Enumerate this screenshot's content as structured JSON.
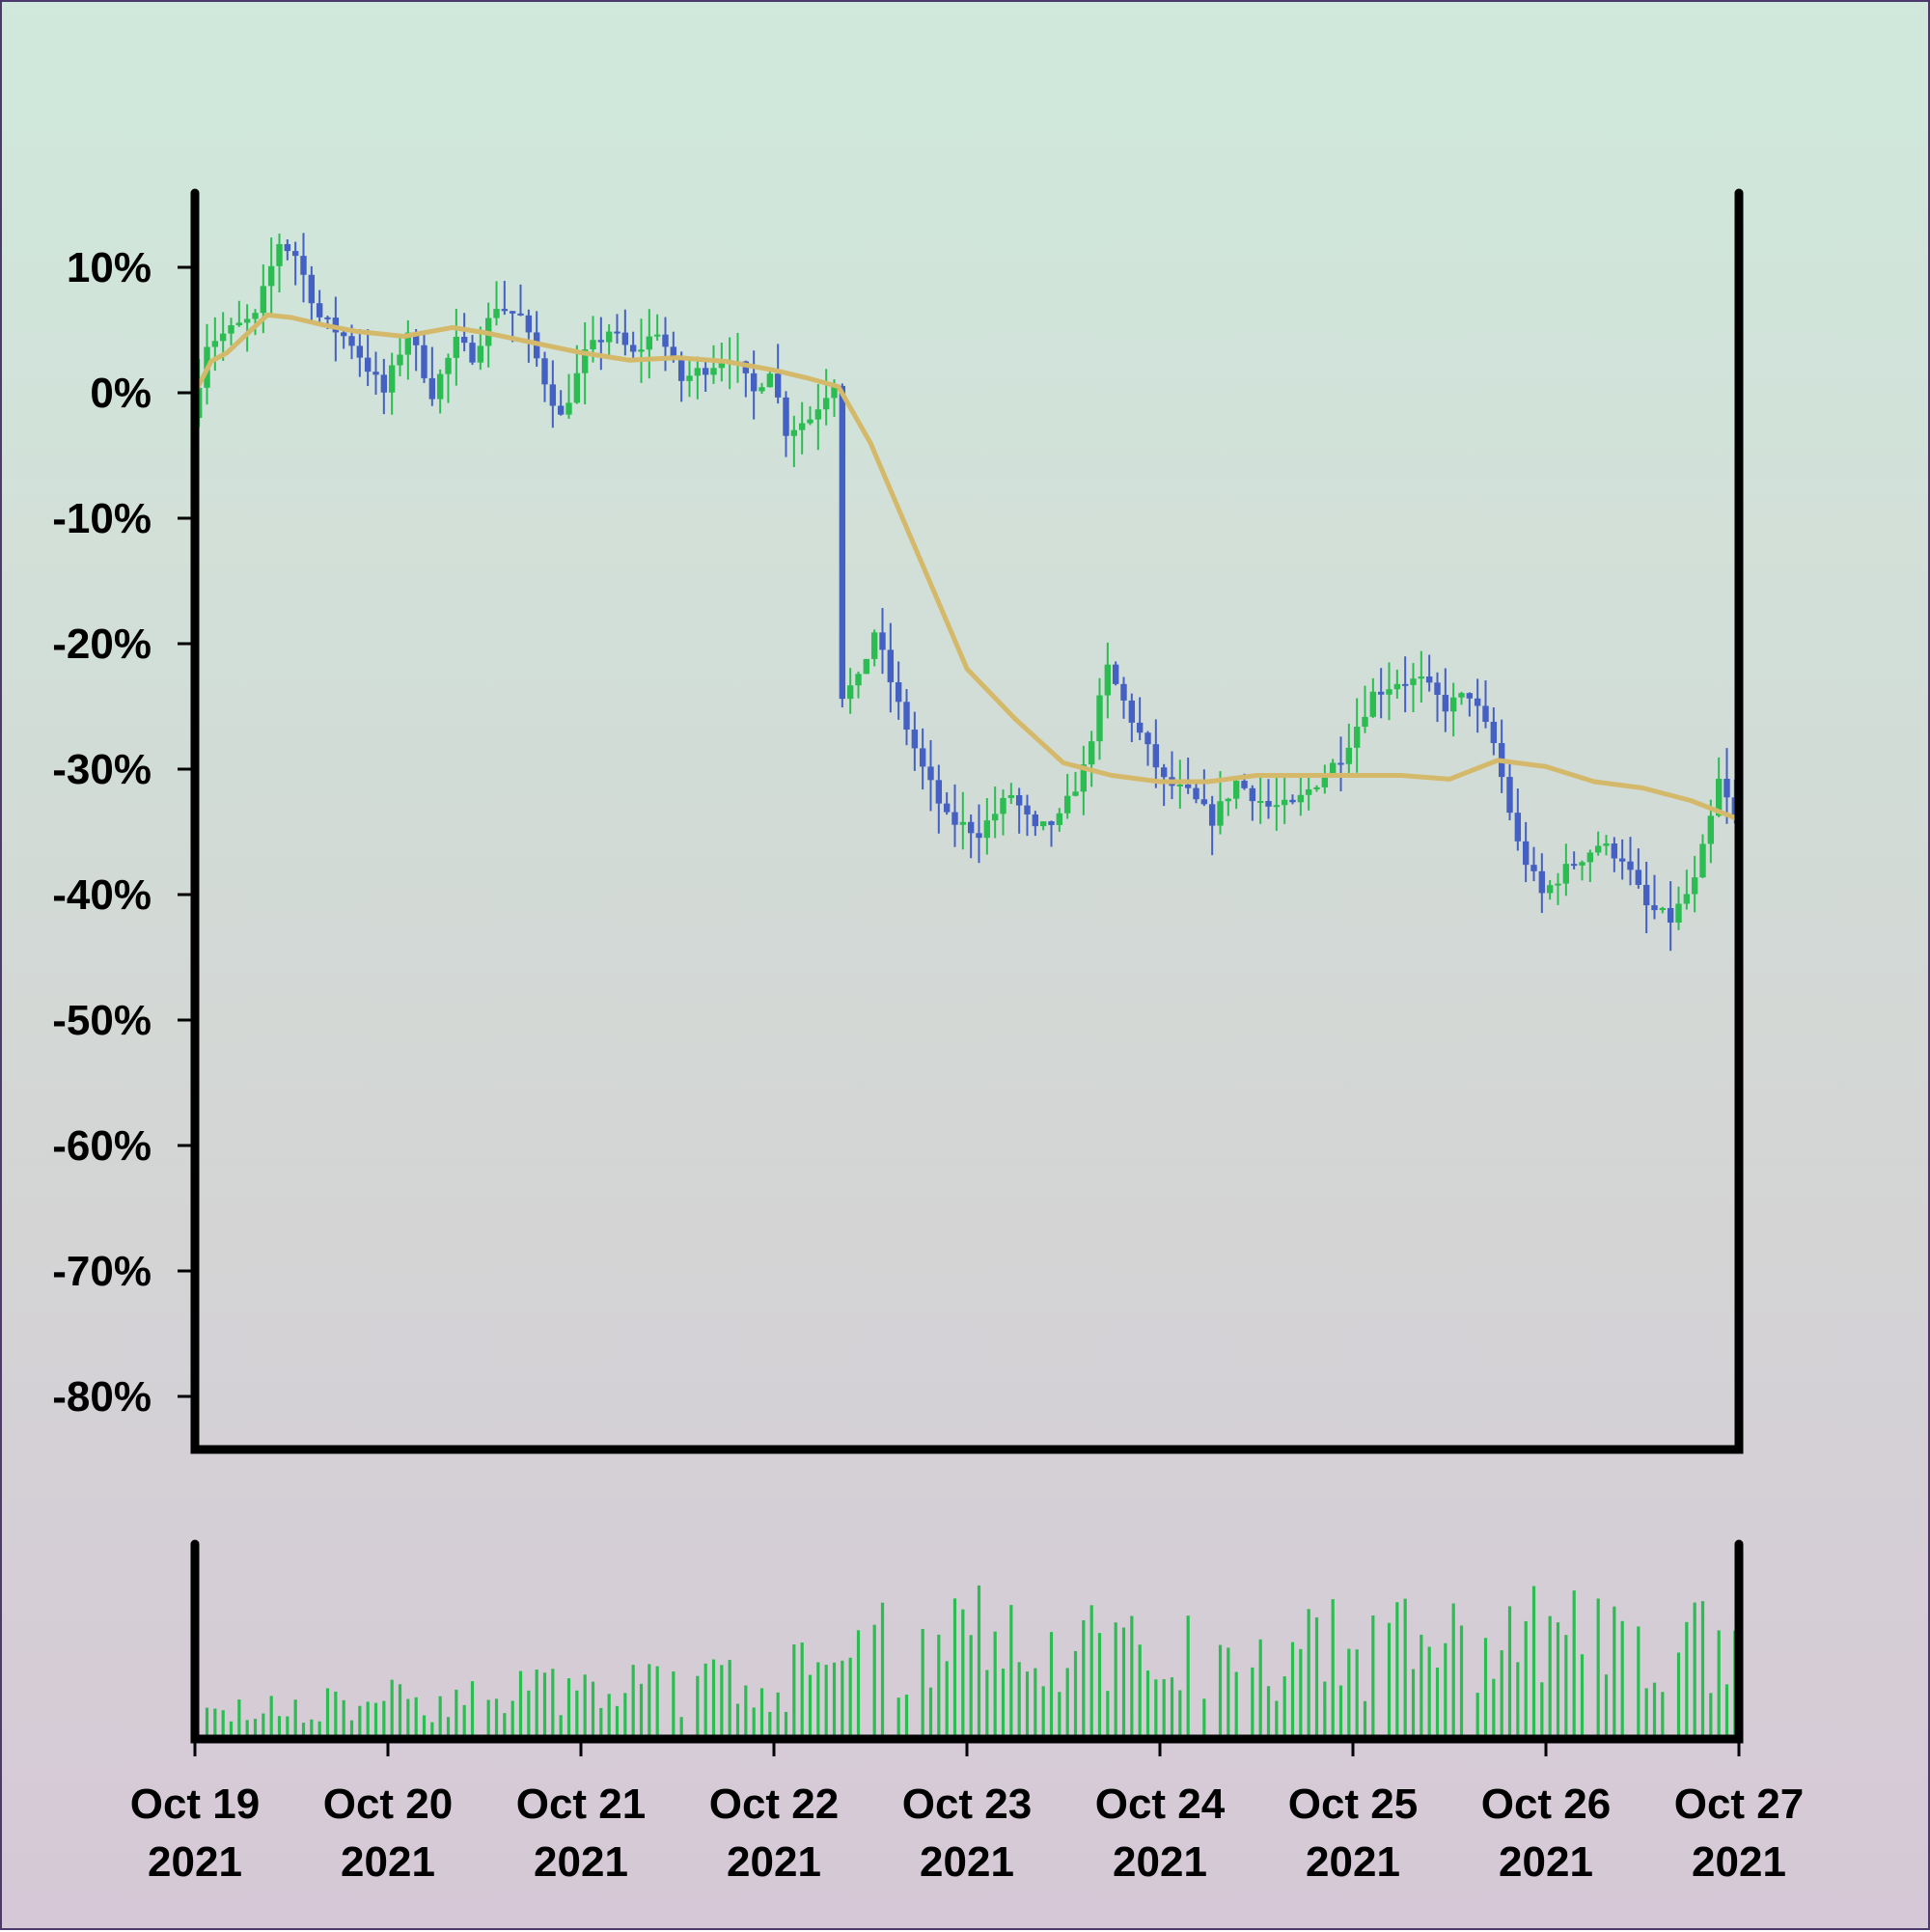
{
  "chart_data": {
    "type": "candlestick",
    "title": "",
    "xlabel": "",
    "ylabel": "",
    "y_unit": "%",
    "ylim": [
      -84,
      16
    ],
    "yticks": [
      10,
      0,
      -10,
      -20,
      -30,
      -40,
      -50,
      -60,
      -70,
      -80
    ],
    "ytick_labels": [
      "10%",
      "0%",
      "-10%",
      "-20%",
      "-30%",
      "-40%",
      "-50%",
      "-60%",
      "-70%",
      "-80%"
    ],
    "x_start": "2021-10-19",
    "x_end": "2021-10-27",
    "xtick_labels": [
      {
        "date": "2021-10-19",
        "line1": "Oct 19",
        "line2": "2021"
      },
      {
        "date": "2021-10-20",
        "line1": "Oct 20",
        "line2": "2021"
      },
      {
        "date": "2021-10-21",
        "line1": "Oct 21",
        "line2": "2021"
      },
      {
        "date": "2021-10-22",
        "line1": "Oct 22",
        "line2": "2021"
      },
      {
        "date": "2021-10-23",
        "line1": "Oct 23",
        "line2": "2021"
      },
      {
        "date": "2021-10-24",
        "line1": "Oct 24",
        "line2": "2021"
      },
      {
        "date": "2021-10-25",
        "line1": "Oct 25",
        "line2": "2021"
      },
      {
        "date": "2021-10-26",
        "line1": "Oct 26",
        "line2": "2021"
      },
      {
        "date": "2021-10-27",
        "line1": "Oct 27",
        "line2": "2021"
      }
    ],
    "price_path": [
      [
        "2021-10-19T00:00",
        -2
      ],
      [
        "2021-10-19T02:00",
        4
      ],
      [
        "2021-10-19T05:00",
        5
      ],
      [
        "2021-10-19T08:00",
        6
      ],
      [
        "2021-10-19T11:00",
        12
      ],
      [
        "2021-10-19T13:00",
        11
      ],
      [
        "2021-10-19T16:00",
        6
      ],
      [
        "2021-10-19T20:00",
        4
      ],
      [
        "2021-10-20T00:00",
        0
      ],
      [
        "2021-10-20T03:00",
        5
      ],
      [
        "2021-10-20T06:00",
        0
      ],
      [
        "2021-10-20T09:00",
        4
      ],
      [
        "2021-10-20T11:00",
        3
      ],
      [
        "2021-10-20T14:00",
        7
      ],
      [
        "2021-10-20T17:00",
        6
      ],
      [
        "2021-10-20T20:00",
        1
      ],
      [
        "2021-10-20T22:00",
        -2
      ],
      [
        "2021-10-21T01:00",
        3
      ],
      [
        "2021-10-21T04:00",
        5
      ],
      [
        "2021-10-21T07:00",
        3
      ],
      [
        "2021-10-21T10:00",
        5
      ],
      [
        "2021-10-21T13:00",
        1
      ],
      [
        "2021-10-21T16:00",
        2
      ],
      [
        "2021-10-21T19:00",
        3
      ],
      [
        "2021-10-21T22:00",
        0
      ],
      [
        "2021-10-22T00:00",
        2
      ],
      [
        "2021-10-22T02:00",
        -3
      ],
      [
        "2021-10-22T05:00",
        -2
      ],
      [
        "2021-10-22T07:00",
        0
      ],
      [
        "2021-10-22T08:00",
        1
      ],
      [
        "2021-10-22T09:00",
        -24
      ],
      [
        "2021-10-22T11:00",
        -23
      ],
      [
        "2021-10-22T13:00",
        -19
      ],
      [
        "2021-10-22T16:00",
        -25
      ],
      [
        "2021-10-22T19:00",
        -30
      ],
      [
        "2021-10-22T22:00",
        -34
      ],
      [
        "2021-10-23T02:00",
        -35
      ],
      [
        "2021-10-23T06:00",
        -32
      ],
      [
        "2021-10-23T09:00",
        -35
      ],
      [
        "2021-10-23T12:00",
        -34
      ],
      [
        "2021-10-23T15:00",
        -30
      ],
      [
        "2021-10-23T18:00",
        -22
      ],
      [
        "2021-10-23T21:00",
        -26
      ],
      [
        "2021-10-24T01:00",
        -31
      ],
      [
        "2021-10-24T04:00",
        -32
      ],
      [
        "2021-10-24T07:00",
        -34
      ],
      [
        "2021-10-24T10:00",
        -31
      ],
      [
        "2021-10-24T14:00",
        -33
      ],
      [
        "2021-10-24T17:00",
        -33
      ],
      [
        "2021-10-24T20:00",
        -31
      ],
      [
        "2021-10-24T23:00",
        -29
      ],
      [
        "2021-10-25T03:00",
        -24
      ],
      [
        "2021-10-25T06:00",
        -23
      ],
      [
        "2021-10-25T09:00",
        -23
      ],
      [
        "2021-10-25T12:00",
        -25
      ],
      [
        "2021-10-25T15:00",
        -24
      ],
      [
        "2021-10-25T18:00",
        -28
      ],
      [
        "2021-10-25T21:00",
        -36
      ],
      [
        "2021-10-26T00:00",
        -40
      ],
      [
        "2021-10-26T03:00",
        -38
      ],
      [
        "2021-10-26T07:00",
        -36
      ],
      [
        "2021-10-26T10:00",
        -37
      ],
      [
        "2021-10-26T13:00",
        -41
      ],
      [
        "2021-10-26T16:00",
        -42
      ],
      [
        "2021-10-26T19:00",
        -39
      ],
      [
        "2021-10-26T21:00",
        -34
      ],
      [
        "2021-10-26T22:00",
        -31
      ],
      [
        "2021-10-27T00:00",
        -34
      ]
    ],
    "moving_average": [
      [
        "2021-10-19T00:00",
        0
      ],
      [
        "2021-10-19T02:00",
        2.5
      ],
      [
        "2021-10-19T04:00",
        3.2
      ],
      [
        "2021-10-19T07:00",
        5
      ],
      [
        "2021-10-19T09:00",
        6.2
      ],
      [
        "2021-10-19T12:00",
        6.0
      ],
      [
        "2021-10-19T16:00",
        5.4
      ],
      [
        "2021-10-19T20:00",
        4.9
      ],
      [
        "2021-10-20T02:00",
        4.5
      ],
      [
        "2021-10-20T08:00",
        5.2
      ],
      [
        "2021-10-20T12:00",
        4.8
      ],
      [
        "2021-10-20T18:00",
        4.0
      ],
      [
        "2021-10-21T00:00",
        3.2
      ],
      [
        "2021-10-21T06:00",
        2.6
      ],
      [
        "2021-10-21T12:00",
        2.8
      ],
      [
        "2021-10-21T18:00",
        2.5
      ],
      [
        "2021-10-22T00:00",
        1.8
      ],
      [
        "2021-10-22T04:00",
        1.2
      ],
      [
        "2021-10-22T08:00",
        0.5
      ],
      [
        "2021-10-22T12:00",
        -4
      ],
      [
        "2021-10-22T16:00",
        -10
      ],
      [
        "2021-10-22T20:00",
        -16
      ],
      [
        "2021-10-23T00:00",
        -22
      ],
      [
        "2021-10-23T06:00",
        -26
      ],
      [
        "2021-10-23T12:00",
        -29.5
      ],
      [
        "2021-10-23T18:00",
        -30.5
      ],
      [
        "2021-10-24T00:00",
        -31
      ],
      [
        "2021-10-24T06:00",
        -31
      ],
      [
        "2021-10-24T12:00",
        -30.5
      ],
      [
        "2021-10-24T18:00",
        -30.5
      ],
      [
        "2021-10-25T00:00",
        -30.5
      ],
      [
        "2021-10-25T06:00",
        -30.5
      ],
      [
        "2021-10-25T12:00",
        -30.8
      ],
      [
        "2021-10-25T18:00",
        -29.3
      ],
      [
        "2021-10-26T00:00",
        -29.8
      ],
      [
        "2021-10-26T06:00",
        -31
      ],
      [
        "2021-10-26T12:00",
        -31.5
      ],
      [
        "2021-10-26T18:00",
        -32.5
      ],
      [
        "2021-10-27T00:00",
        -34
      ]
    ],
    "volume_profile": [
      [
        "2021-10-19",
        0.15
      ],
      [
        "2021-10-20",
        0.25
      ],
      [
        "2021-10-21",
        0.32
      ],
      [
        "2021-10-22",
        0.38
      ],
      [
        "2021-10-23",
        0.75
      ],
      [
        "2021-10-24",
        0.55
      ],
      [
        "2021-10-25",
        0.6
      ],
      [
        "2021-10-26",
        0.7
      ],
      [
        "2021-10-27",
        0.6
      ]
    ],
    "colors": {
      "up": "#2bbd52",
      "down": "#4460c2",
      "moving_average": "#d4b96a",
      "volume": "#2bbd52",
      "axis": "#000000"
    },
    "grid": false,
    "legend": "none"
  }
}
